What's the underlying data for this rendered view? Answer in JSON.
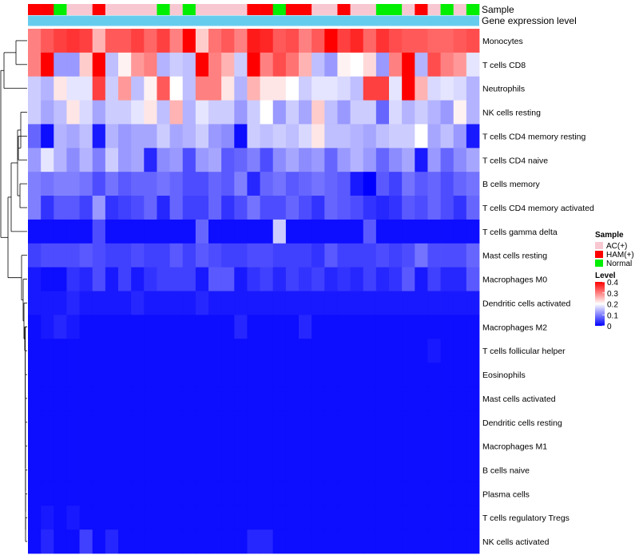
{
  "chart_data": {
    "type": "heatmap",
    "title": "",
    "annotation_rows": [
      "Sample",
      "Gene expression level"
    ],
    "annotation_colors": {
      "AC(+)": "#f8c8d2",
      "HAM(+)": "#ff0000",
      "Normal": "#00ee00",
      "gene_expression_level": "#66ccee"
    },
    "samples": [
      "HAM(+)",
      "HAM(+)",
      "Normal",
      "AC(+)",
      "AC(+)",
      "HAM(+)",
      "AC(+)",
      "AC(+)",
      "AC(+)",
      "AC(+)",
      "Normal",
      "AC(+)",
      "Normal",
      "AC(+)",
      "AC(+)",
      "AC(+)",
      "AC(+)",
      "HAM(+)",
      "HAM(+)",
      "Normal",
      "HAM(+)",
      "HAM(+)",
      "AC(+)",
      "AC(+)",
      "HAM(+)",
      "AC(+)",
      "AC(+)",
      "Normal",
      "Normal",
      "AC(+)",
      "HAM(+)",
      "AC(+)",
      "Normal",
      "AC(+)",
      "Normal"
    ],
    "rows": [
      "Monocytes",
      "T cells CD8",
      "Neutrophils",
      "NK cells resting",
      "T cells CD4 memory resting",
      "T cells CD4 naive",
      "B cells memory",
      "T cells CD4 memory activated",
      "T cells gamma delta",
      "Mast cells resting",
      "Macrophages M0",
      "Dendritic cells activated",
      "Macrophages M2",
      "T cells follicular helper",
      "Eosinophils",
      "Mast cells activated",
      "Dendritic cells resting",
      "Macrophages M1",
      "B cells naive",
      "Plasma cells",
      "T cells regulatory  Tregs",
      "NK cells activated"
    ],
    "values": [
      [
        0.3,
        0.33,
        0.35,
        0.36,
        0.35,
        0.26,
        0.33,
        0.33,
        0.35,
        0.32,
        0.35,
        0.3,
        0.4,
        0.24,
        0.31,
        0.33,
        0.3,
        0.38,
        0.37,
        0.33,
        0.34,
        0.3,
        0.33,
        0.4,
        0.35,
        0.37,
        0.32,
        0.36,
        0.34,
        0.33,
        0.33,
        0.32,
        0.32,
        0.33,
        0.34
      ],
      [
        0.3,
        0.4,
        0.12,
        0.12,
        0.24,
        0.4,
        0.15,
        0.21,
        0.28,
        0.3,
        0.14,
        0.16,
        0.15,
        0.4,
        0.3,
        0.26,
        0.16,
        0.4,
        0.3,
        0.34,
        0.31,
        0.26,
        0.15,
        0.12,
        0.21,
        0.2,
        0.23,
        0.12,
        0.3,
        0.4,
        0.14,
        0.34,
        0.3,
        0.28,
        0.18
      ],
      [
        0.16,
        0.14,
        0.22,
        0.18,
        0.18,
        0.35,
        0.16,
        0.28,
        0.15,
        0.21,
        0.33,
        0.2,
        0.15,
        0.3,
        0.3,
        0.22,
        0.14,
        0.26,
        0.22,
        0.22,
        0.2,
        0.16,
        0.18,
        0.18,
        0.17,
        0.15,
        0.35,
        0.35,
        0.18,
        0.4,
        0.26,
        0.17,
        0.18,
        0.17,
        0.14
      ],
      [
        0.16,
        0.13,
        0.15,
        0.22,
        0.17,
        0.13,
        0.16,
        0.16,
        0.18,
        0.22,
        0.15,
        0.26,
        0.14,
        0.18,
        0.16,
        0.16,
        0.12,
        0.16,
        0.2,
        0.12,
        0.16,
        0.13,
        0.24,
        0.15,
        0.12,
        0.16,
        0.16,
        0.08,
        0.17,
        0.14,
        0.16,
        0.14,
        0.12,
        0.21,
        0.14
      ],
      [
        0.08,
        0.01,
        0.14,
        0.13,
        0.15,
        0.02,
        0.14,
        0.12,
        0.13,
        0.13,
        0.16,
        0.13,
        0.14,
        0.16,
        0.12,
        0.11,
        0.01,
        0.16,
        0.15,
        0.16,
        0.15,
        0.17,
        0.22,
        0.15,
        0.15,
        0.14,
        0.13,
        0.15,
        0.16,
        0.16,
        0.2,
        0.13,
        0.15,
        0.12,
        0.02
      ],
      [
        0.12,
        0.18,
        0.14,
        0.11,
        0.14,
        0.1,
        0.16,
        0.12,
        0.13,
        0.03,
        0.11,
        0.12,
        0.06,
        0.12,
        0.13,
        0.07,
        0.08,
        0.1,
        0.06,
        0.11,
        0.13,
        0.11,
        0.12,
        0.08,
        0.12,
        0.14,
        0.12,
        0.08,
        0.11,
        0.13,
        0.02,
        0.12,
        0.08,
        0.11,
        0.13
      ],
      [
        0.1,
        0.09,
        0.1,
        0.1,
        0.09,
        0.06,
        0.09,
        0.07,
        0.08,
        0.08,
        0.09,
        0.08,
        0.06,
        0.06,
        0.08,
        0.07,
        0.1,
        0.03,
        0.08,
        0.09,
        0.07,
        0.08,
        0.09,
        0.08,
        0.07,
        0.02,
        0.0,
        0.07,
        0.05,
        0.09,
        0.07,
        0.08,
        0.06,
        0.08,
        0.09
      ],
      [
        0.1,
        0.04,
        0.07,
        0.07,
        0.05,
        0.12,
        0.04,
        0.05,
        0.06,
        0.08,
        0.03,
        0.08,
        0.05,
        0.05,
        0.08,
        0.04,
        0.06,
        0.09,
        0.06,
        0.06,
        0.08,
        0.06,
        0.04,
        0.08,
        0.07,
        0.06,
        0.04,
        0.03,
        0.04,
        0.07,
        0.06,
        0.08,
        0.06,
        0.04,
        0.08
      ],
      [
        0.01,
        0.01,
        0.01,
        0.01,
        0.01,
        0.06,
        0.01,
        0.01,
        0.01,
        0.01,
        0.01,
        0.01,
        0.01,
        0.08,
        0.01,
        0.01,
        0.01,
        0.01,
        0.01,
        0.16,
        0.01,
        0.01,
        0.01,
        0.01,
        0.01,
        0.01,
        0.07,
        0.01,
        0.01,
        0.01,
        0.01,
        0.01,
        0.01,
        0.01,
        0.01
      ],
      [
        0.05,
        0.06,
        0.06,
        0.06,
        0.07,
        0.06,
        0.05,
        0.05,
        0.06,
        0.05,
        0.05,
        0.07,
        0.05,
        0.07,
        0.06,
        0.05,
        0.05,
        0.06,
        0.06,
        0.05,
        0.05,
        0.05,
        0.04,
        0.07,
        0.05,
        0.05,
        0.05,
        0.06,
        0.05,
        0.06,
        0.09,
        0.06,
        0.06,
        0.06,
        0.08
      ],
      [
        0.02,
        0.01,
        0.01,
        0.04,
        0.03,
        0.06,
        0.02,
        0.05,
        0.02,
        0.04,
        0.05,
        0.05,
        0.05,
        0.02,
        0.07,
        0.07,
        0.02,
        0.04,
        0.05,
        0.03,
        0.05,
        0.04,
        0.05,
        0.03,
        0.04,
        0.03,
        0.05,
        0.03,
        0.04,
        0.07,
        0.02,
        0.05,
        0.03,
        0.03,
        0.07
      ],
      [
        0.02,
        0.02,
        0.02,
        0.03,
        0.02,
        0.02,
        0.02,
        0.02,
        0.03,
        0.02,
        0.02,
        0.02,
        0.02,
        0.03,
        0.02,
        0.02,
        0.02,
        0.02,
        0.02,
        0.02,
        0.02,
        0.02,
        0.02,
        0.02,
        0.02,
        0.02,
        0.02,
        0.02,
        0.02,
        0.02,
        0.02,
        0.02,
        0.02,
        0.02,
        0.02
      ],
      [
        0.01,
        0.02,
        0.03,
        0.02,
        0.01,
        0.01,
        0.01,
        0.01,
        0.01,
        0.01,
        0.01,
        0.01,
        0.01,
        0.01,
        0.01,
        0.01,
        0.03,
        0.01,
        0.01,
        0.01,
        0.01,
        0.03,
        0.01,
        0.01,
        0.01,
        0.01,
        0.01,
        0.01,
        0.01,
        0.01,
        0.01,
        0.01,
        0.01,
        0.01,
        0.01
      ],
      [
        0.01,
        0.01,
        0.01,
        0.01,
        0.01,
        0.01,
        0.01,
        0.01,
        0.01,
        0.01,
        0.01,
        0.01,
        0.01,
        0.01,
        0.01,
        0.01,
        0.01,
        0.01,
        0.01,
        0.01,
        0.01,
        0.01,
        0.01,
        0.01,
        0.01,
        0.01,
        0.01,
        0.01,
        0.01,
        0.01,
        0.01,
        0.02,
        0.01,
        0.01,
        0.01
      ],
      [
        0.01,
        0.01,
        0.01,
        0.01,
        0.01,
        0.01,
        0.01,
        0.01,
        0.01,
        0.01,
        0.01,
        0.01,
        0.01,
        0.01,
        0.01,
        0.01,
        0.01,
        0.01,
        0.01,
        0.01,
        0.01,
        0.01,
        0.01,
        0.01,
        0.01,
        0.01,
        0.01,
        0.01,
        0.01,
        0.01,
        0.01,
        0.01,
        0.01,
        0.01,
        0.01
      ],
      [
        0.01,
        0.01,
        0.01,
        0.01,
        0.01,
        0.01,
        0.01,
        0.01,
        0.01,
        0.01,
        0.01,
        0.01,
        0.01,
        0.01,
        0.01,
        0.01,
        0.01,
        0.01,
        0.01,
        0.01,
        0.01,
        0.01,
        0.01,
        0.01,
        0.01,
        0.01,
        0.01,
        0.01,
        0.01,
        0.01,
        0.01,
        0.01,
        0.01,
        0.01,
        0.01
      ],
      [
        0.01,
        0.01,
        0.01,
        0.01,
        0.01,
        0.01,
        0.01,
        0.01,
        0.01,
        0.01,
        0.01,
        0.01,
        0.01,
        0.01,
        0.01,
        0.01,
        0.01,
        0.01,
        0.01,
        0.01,
        0.01,
        0.01,
        0.01,
        0.01,
        0.01,
        0.01,
        0.01,
        0.01,
        0.01,
        0.01,
        0.01,
        0.01,
        0.01,
        0.01,
        0.01
      ],
      [
        0.01,
        0.01,
        0.01,
        0.01,
        0.01,
        0.01,
        0.01,
        0.01,
        0.01,
        0.01,
        0.01,
        0.01,
        0.01,
        0.01,
        0.01,
        0.01,
        0.01,
        0.01,
        0.01,
        0.01,
        0.01,
        0.01,
        0.01,
        0.01,
        0.01,
        0.01,
        0.01,
        0.01,
        0.01,
        0.01,
        0.01,
        0.01,
        0.01,
        0.01,
        0.01
      ],
      [
        0.01,
        0.01,
        0.01,
        0.01,
        0.01,
        0.01,
        0.01,
        0.01,
        0.01,
        0.01,
        0.01,
        0.01,
        0.01,
        0.01,
        0.01,
        0.01,
        0.01,
        0.01,
        0.01,
        0.01,
        0.01,
        0.01,
        0.01,
        0.01,
        0.01,
        0.01,
        0.01,
        0.01,
        0.01,
        0.01,
        0.01,
        0.01,
        0.01,
        0.01,
        0.01
      ],
      [
        0.01,
        0.01,
        0.01,
        0.01,
        0.01,
        0.01,
        0.01,
        0.01,
        0.01,
        0.01,
        0.01,
        0.01,
        0.01,
        0.01,
        0.01,
        0.01,
        0.01,
        0.01,
        0.01,
        0.01,
        0.01,
        0.01,
        0.01,
        0.01,
        0.01,
        0.01,
        0.01,
        0.01,
        0.01,
        0.01,
        0.01,
        0.01,
        0.01,
        0.01,
        0.01
      ],
      [
        0.01,
        0.02,
        0.01,
        0.02,
        0.01,
        0.01,
        0.01,
        0.01,
        0.01,
        0.01,
        0.01,
        0.01,
        0.01,
        0.01,
        0.01,
        0.01,
        0.01,
        0.01,
        0.01,
        0.01,
        0.01,
        0.01,
        0.01,
        0.01,
        0.01,
        0.01,
        0.01,
        0.01,
        0.01,
        0.01,
        0.01,
        0.01,
        0.01,
        0.01,
        0.01
      ],
      [
        0.01,
        0.03,
        0.01,
        0.01,
        0.05,
        0.01,
        0.03,
        0.01,
        0.01,
        0.01,
        0.01,
        0.01,
        0.01,
        0.01,
        0.01,
        0.01,
        0.01,
        0.03,
        0.03,
        0.01,
        0.01,
        0.01,
        0.01,
        0.01,
        0.01,
        0.01,
        0.01,
        0.01,
        0.01,
        0.01,
        0.01,
        0.01,
        0.01,
        0.01,
        0.01
      ]
    ],
    "legend": {
      "sample_title": "Sample",
      "sample_entries": [
        "AC(+)",
        "HAM(+)",
        "Normal"
      ],
      "level_title": "Level",
      "level_ticks": [
        "0.4",
        "0.3",
        "0.2",
        "0.1",
        "0"
      ],
      "level_range": [
        0,
        0.4
      ],
      "level_colors": [
        "#0000ff",
        "#ffffff",
        "#ff0000"
      ]
    }
  }
}
